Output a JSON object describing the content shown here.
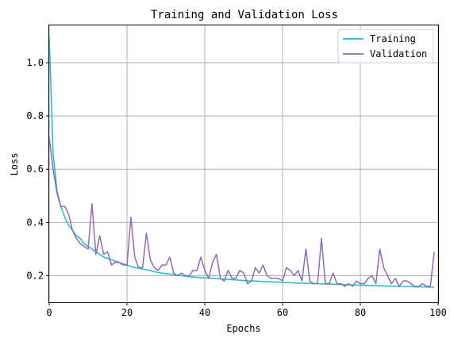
{
  "chart_data": {
    "type": "line",
    "title": "Training and Validation Loss",
    "xlabel": "Epochs",
    "ylabel": "Loss",
    "xlim": [
      0,
      100
    ],
    "ylim": [
      0.1,
      1.14
    ],
    "xticks": [
      0,
      20,
      40,
      60,
      80,
      100
    ],
    "yticks": [
      0.2,
      0.4,
      0.6,
      0.8,
      1.0
    ],
    "xtick_labels": [
      "0",
      "20",
      "40",
      "60",
      "80",
      "100"
    ],
    "ytick_labels": [
      "0.2",
      "0.4",
      "0.6",
      "0.8",
      "1.0"
    ],
    "grid": true,
    "legend_position": "top-right",
    "x": [
      0,
      1,
      2,
      3,
      4,
      5,
      6,
      7,
      8,
      9,
      10,
      11,
      12,
      13,
      14,
      15,
      16,
      17,
      18,
      19,
      20,
      21,
      22,
      23,
      24,
      25,
      26,
      27,
      28,
      29,
      30,
      31,
      32,
      33,
      34,
      35,
      36,
      37,
      38,
      39,
      40,
      41,
      42,
      43,
      44,
      45,
      46,
      47,
      48,
      49,
      50,
      51,
      52,
      53,
      54,
      55,
      56,
      57,
      58,
      59,
      60,
      61,
      62,
      63,
      64,
      65,
      66,
      67,
      68,
      69,
      70,
      71,
      72,
      73,
      74,
      75,
      76,
      77,
      78,
      79,
      80,
      81,
      82,
      83,
      84,
      85,
      86,
      87,
      88,
      89,
      90,
      91,
      92,
      93,
      94,
      95,
      96,
      97,
      98,
      99
    ],
    "series": [
      {
        "name": "Training",
        "color": "#17becf",
        "values": [
          1.1,
          0.66,
          0.52,
          0.46,
          0.42,
          0.39,
          0.37,
          0.35,
          0.34,
          0.32,
          0.31,
          0.3,
          0.29,
          0.28,
          0.27,
          0.265,
          0.26,
          0.255,
          0.25,
          0.245,
          0.24,
          0.235,
          0.23,
          0.228,
          0.225,
          0.222,
          0.22,
          0.215,
          0.212,
          0.21,
          0.208,
          0.206,
          0.204,
          0.202,
          0.2,
          0.198,
          0.196,
          0.195,
          0.194,
          0.193,
          0.192,
          0.191,
          0.19,
          0.189,
          0.188,
          0.187,
          0.186,
          0.185,
          0.184,
          0.183,
          0.182,
          0.181,
          0.18,
          0.18,
          0.179,
          0.178,
          0.178,
          0.177,
          0.176,
          0.176,
          0.175,
          0.174,
          0.174,
          0.173,
          0.172,
          0.172,
          0.171,
          0.171,
          0.17,
          0.17,
          0.169,
          0.169,
          0.168,
          0.168,
          0.167,
          0.167,
          0.166,
          0.166,
          0.165,
          0.165,
          0.164,
          0.164,
          0.163,
          0.163,
          0.163,
          0.162,
          0.162,
          0.161,
          0.161,
          0.16,
          0.16,
          0.16,
          0.159,
          0.159,
          0.158,
          0.158,
          0.158,
          0.157,
          0.157,
          0.156
        ]
      },
      {
        "name": "Validation",
        "color": "#9467bd",
        "values": [
          0.72,
          0.6,
          0.51,
          0.46,
          0.46,
          0.43,
          0.37,
          0.34,
          0.32,
          0.31,
          0.3,
          0.47,
          0.28,
          0.35,
          0.28,
          0.29,
          0.24,
          0.25,
          0.25,
          0.24,
          0.24,
          0.42,
          0.27,
          0.23,
          0.23,
          0.36,
          0.26,
          0.23,
          0.22,
          0.24,
          0.24,
          0.27,
          0.21,
          0.2,
          0.21,
          0.2,
          0.2,
          0.22,
          0.22,
          0.27,
          0.22,
          0.19,
          0.25,
          0.28,
          0.19,
          0.18,
          0.22,
          0.19,
          0.19,
          0.22,
          0.21,
          0.17,
          0.18,
          0.23,
          0.21,
          0.24,
          0.2,
          0.19,
          0.19,
          0.19,
          0.18,
          0.23,
          0.22,
          0.2,
          0.22,
          0.18,
          0.3,
          0.18,
          0.17,
          0.17,
          0.34,
          0.17,
          0.17,
          0.21,
          0.17,
          0.17,
          0.16,
          0.17,
          0.16,
          0.18,
          0.17,
          0.17,
          0.19,
          0.2,
          0.17,
          0.3,
          0.23,
          0.2,
          0.17,
          0.19,
          0.16,
          0.18,
          0.18,
          0.17,
          0.16,
          0.16,
          0.17,
          0.16,
          0.16,
          0.29
        ]
      }
    ]
  }
}
